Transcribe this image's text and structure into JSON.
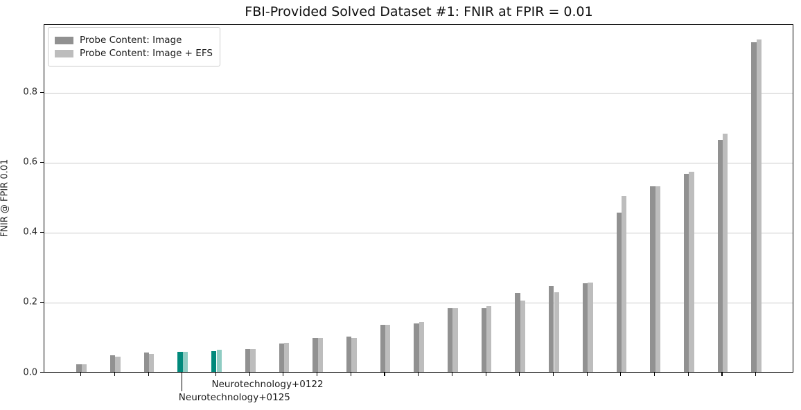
{
  "title": "FBI-Provided Solved Dataset #1: FNIR at FPIR = 0.01",
  "legend": {
    "items": [
      {
        "label": "Probe Content: Image",
        "color": "#919191"
      },
      {
        "label": "Probe Content: Image + EFS",
        "color": "#bdbdbd"
      }
    ]
  },
  "annotations": [
    {
      "label": "Neurotechnology+0125",
      "group_index": 3,
      "has_leader_line": true
    },
    {
      "label": "Neurotechnology+0122",
      "group_index": 4,
      "has_leader_line": false
    }
  ],
  "colors": {
    "bar_image": "#919191",
    "bar_image_efs": "#bdbdbd",
    "highlight_image": "#00897b",
    "highlight_image_efs": "#8fccc3",
    "gridline": "#c9c9c9",
    "axis": "#000000"
  },
  "chart_data": {
    "type": "bar",
    "title": "FBI-Provided Solved Dataset #1: FNIR at FPIR = 0.01",
    "xlabel": "",
    "ylabel": "FNIR @ FPIR 0.01",
    "ylim": [
      0,
      0.995
    ],
    "ytick_labels": [
      "0.0",
      "0.2",
      "0.4",
      "0.6",
      "0.8"
    ],
    "ytick_values": [
      0.0,
      0.2,
      0.4,
      0.6,
      0.8
    ],
    "grid": "horizontal",
    "legend_position": "upper-left",
    "n_groups": 21,
    "x_tick_labels_shown": false,
    "highlighted_groups": [
      {
        "index": 3,
        "label": "Neurotechnology+0125"
      },
      {
        "index": 4,
        "label": "Neurotechnology+0122"
      }
    ],
    "series": [
      {
        "name": "Probe Content: Image",
        "values": [
          0.022,
          0.048,
          0.055,
          0.057,
          0.06,
          0.066,
          0.081,
          0.097,
          0.102,
          0.135,
          0.138,
          0.182,
          0.182,
          0.225,
          0.245,
          0.254,
          0.456,
          0.531,
          0.567,
          0.663,
          0.942
        ]
      },
      {
        "name": "Probe Content: Image + EFS",
        "values": [
          0.021,
          0.044,
          0.052,
          0.057,
          0.064,
          0.066,
          0.083,
          0.098,
          0.097,
          0.135,
          0.143,
          0.182,
          0.188,
          0.203,
          0.228,
          0.256,
          0.502,
          0.531,
          0.572,
          0.681,
          0.95
        ]
      }
    ]
  }
}
